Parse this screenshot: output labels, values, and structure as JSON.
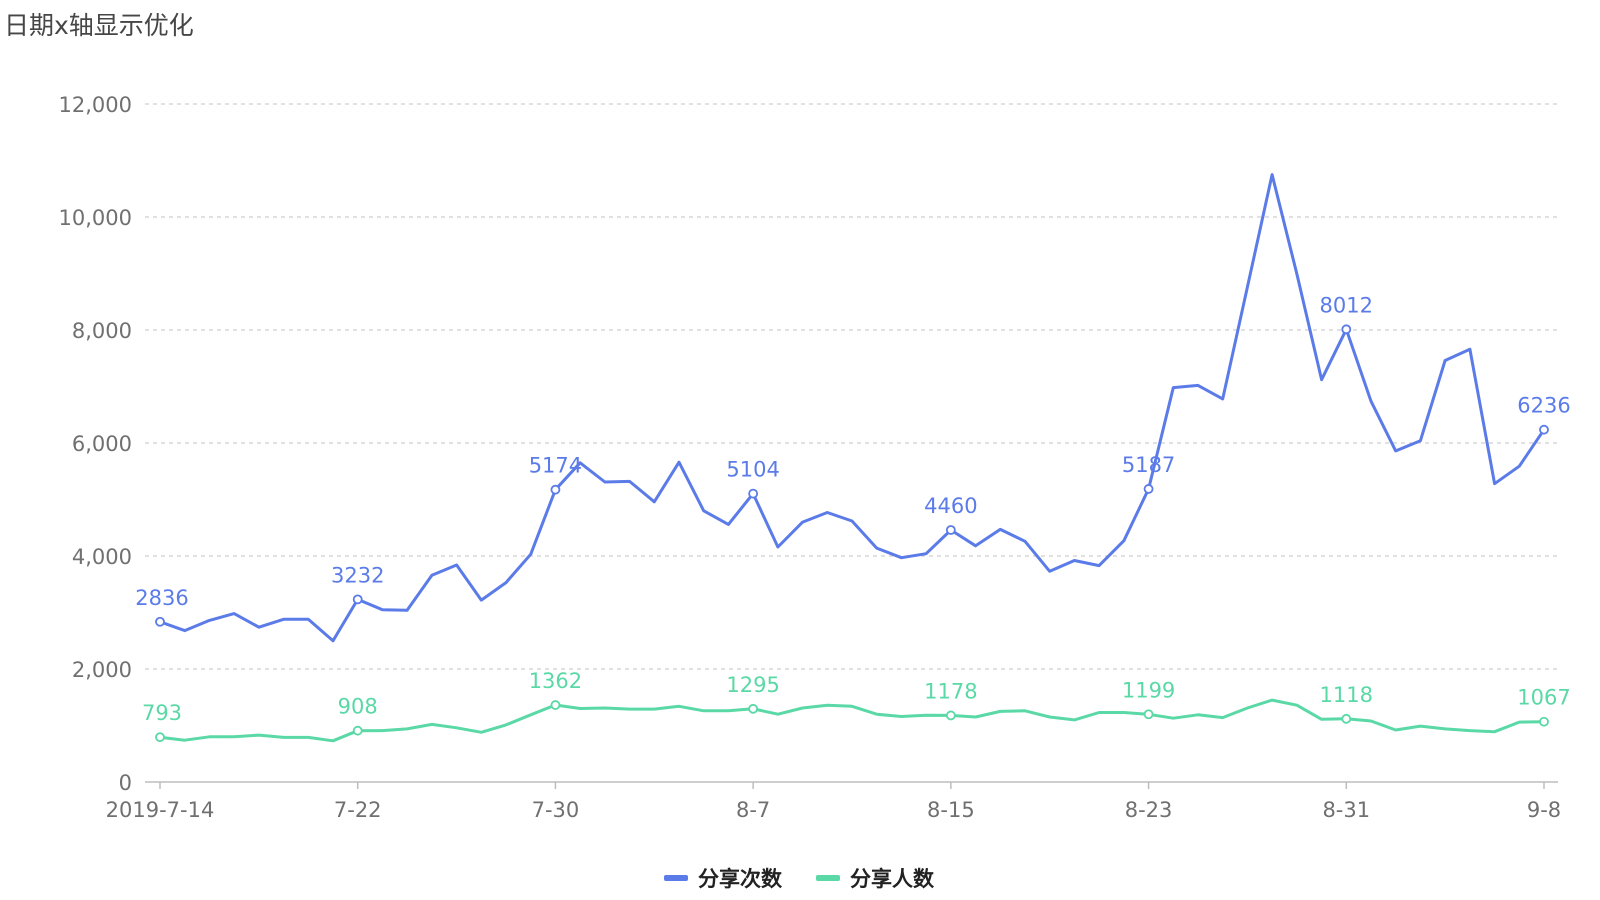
{
  "chart_data": {
    "type": "line",
    "title": "日期x轴显示优化",
    "xlabel": "",
    "ylabel": "",
    "ylim": [
      0,
      12000
    ],
    "yticks": [
      "0",
      "2,000",
      "4,000",
      "6,000",
      "8,000",
      "10,000",
      "12,000"
    ],
    "grid": true,
    "legend_position": "bottom",
    "x_tick_labels": [
      {
        "index": 0,
        "label": "2019-7-14"
      },
      {
        "index": 8,
        "label": "7-22"
      },
      {
        "index": 16,
        "label": "7-30"
      },
      {
        "index": 24,
        "label": "8-7"
      },
      {
        "index": 32,
        "label": "8-15"
      },
      {
        "index": 40,
        "label": "8-23"
      },
      {
        "index": 48,
        "label": "8-31"
      },
      {
        "index": 56,
        "label": "9-8"
      }
    ],
    "x": [
      "2019-7-14",
      "2019-7-15",
      "2019-7-16",
      "2019-7-17",
      "2019-7-18",
      "2019-7-19",
      "2019-7-20",
      "2019-7-21",
      "2019-7-22",
      "2019-7-23",
      "2019-7-24",
      "2019-7-25",
      "2019-7-26",
      "2019-7-27",
      "2019-7-28",
      "2019-7-29",
      "2019-7-30",
      "2019-7-31",
      "2019-8-1",
      "2019-8-2",
      "2019-8-3",
      "2019-8-4",
      "2019-8-5",
      "2019-8-6",
      "2019-8-7",
      "2019-8-8",
      "2019-8-9",
      "2019-8-10",
      "2019-8-11",
      "2019-8-12",
      "2019-8-13",
      "2019-8-14",
      "2019-8-15",
      "2019-8-16",
      "2019-8-17",
      "2019-8-18",
      "2019-8-19",
      "2019-8-20",
      "2019-8-21",
      "2019-8-22",
      "2019-8-23",
      "2019-8-24",
      "2019-8-25",
      "2019-8-26",
      "2019-8-27",
      "2019-8-28",
      "2019-8-29",
      "2019-8-30",
      "2019-8-31",
      "2019-9-1",
      "2019-9-2",
      "2019-9-3",
      "2019-9-4",
      "2019-9-5",
      "2019-9-6",
      "2019-9-7",
      "2019-9-8"
    ],
    "series": [
      {
        "name": "分享次数",
        "color": "#5b7be8",
        "values": [
          2836,
          2680,
          2860,
          2980,
          2740,
          2880,
          2880,
          2500,
          3232,
          3050,
          3040,
          3660,
          3840,
          3220,
          3530,
          4030,
          5174,
          5650,
          5310,
          5320,
          4960,
          5660,
          4800,
          4560,
          5104,
          4160,
          4600,
          4770,
          4620,
          4140,
          3970,
          4040,
          4460,
          4180,
          4470,
          4260,
          3730,
          3920,
          3830,
          4270,
          5187,
          6980,
          7020,
          6780,
          8760,
          10750,
          8990,
          7120,
          8012,
          6740,
          5860,
          6040,
          7460,
          7660,
          5280,
          5590,
          6236
        ],
        "labels": [
          {
            "index": 0,
            "text": "2836"
          },
          {
            "index": 8,
            "text": "3232"
          },
          {
            "index": 16,
            "text": "5174"
          },
          {
            "index": 24,
            "text": "5104"
          },
          {
            "index": 32,
            "text": "4460"
          },
          {
            "index": 40,
            "text": "5187"
          },
          {
            "index": 48,
            "text": "8012"
          },
          {
            "index": 56,
            "text": "6236"
          }
        ]
      },
      {
        "name": "分享人数",
        "color": "#5ad8a6",
        "values": [
          793,
          740,
          800,
          800,
          830,
          790,
          790,
          730,
          908,
          910,
          940,
          1020,
          960,
          880,
          1010,
          1190,
          1362,
          1300,
          1310,
          1290,
          1290,
          1340,
          1260,
          1260,
          1295,
          1200,
          1310,
          1360,
          1340,
          1200,
          1160,
          1180,
          1178,
          1150,
          1250,
          1260,
          1150,
          1100,
          1230,
          1230,
          1199,
          1130,
          1190,
          1140,
          1310,
          1450,
          1360,
          1110,
          1118,
          1080,
          920,
          990,
          940,
          910,
          890,
          1060,
          1067
        ],
        "labels": [
          {
            "index": 0,
            "text": "793"
          },
          {
            "index": 8,
            "text": "908"
          },
          {
            "index": 16,
            "text": "1362"
          },
          {
            "index": 24,
            "text": "1295"
          },
          {
            "index": 32,
            "text": "1178"
          },
          {
            "index": 40,
            "text": "1199"
          },
          {
            "index": 48,
            "text": "1118"
          },
          {
            "index": 56,
            "text": "1067"
          }
        ]
      }
    ]
  }
}
